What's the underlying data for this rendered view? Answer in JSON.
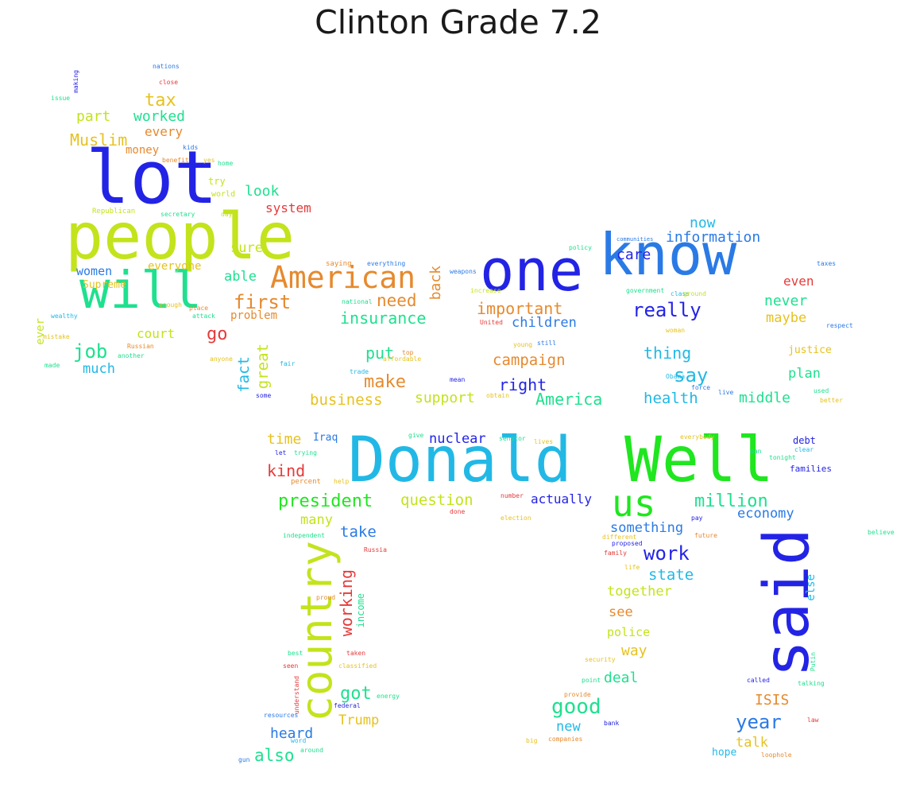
{
  "title": "Clinton Grade 7.2",
  "colors": {
    "blue": "#2323e6",
    "yellowgreen": "#c3e31c",
    "green": "#1fe61f",
    "teal": "#1fe08f",
    "cyan": "#22b8e6",
    "orange": "#e68a2e",
    "red": "#e63a3a",
    "gold": "#e6c21f",
    "skyblue": "#2a7ae6"
  },
  "words": {
    "lot": "lot",
    "people": "people",
    "will": "will",
    "one": "one",
    "know": "know",
    "donald": "Donald",
    "well": "Well",
    "said": "said",
    "country": "country",
    "us": "us",
    "american": "American",
    "tax": "tax",
    "worked": "worked",
    "part": "part",
    "every": "every",
    "muslim": "Muslim",
    "money": "money",
    "look": "look",
    "system": "system",
    "sure": "sure",
    "able": "able",
    "first": "first",
    "women": "women",
    "everyone": "everyone",
    "supreme": "Supreme",
    "problem": "problem",
    "court": "court",
    "go": "go",
    "job": "job",
    "much": "much",
    "ever": "ever",
    "need": "need",
    "back": "back",
    "insurance": "insurance",
    "important": "important",
    "children": "children",
    "really": "really",
    "care": "care",
    "now": "now",
    "information": "information",
    "even": "even",
    "never": "never",
    "maybe": "maybe",
    "fact": "fact",
    "great": "great",
    "put": "put",
    "campaign": "campaign",
    "thing": "thing",
    "say": "say",
    "make": "make",
    "right": "right",
    "business": "business",
    "support": "support",
    "america": "America",
    "health": "health",
    "middle": "middle",
    "plan": "plan",
    "justice": "justice",
    "time": "time",
    "iraq": "Iraq",
    "nuclear": "nuclear",
    "kind": "kind",
    "president": "president",
    "question": "question",
    "actually": "actually",
    "million": "million",
    "economy": "economy",
    "many": "many",
    "take": "take",
    "something": "something",
    "work": "work",
    "state": "state",
    "together": "together",
    "see": "see",
    "working": "working",
    "income": "income",
    "police": "police",
    "way": "way",
    "deal": "deal",
    "got": "got",
    "good": "good",
    "isis": "ISIS",
    "year": "year",
    "trump": "Trump",
    "heard": "heard",
    "new": "new",
    "talk": "talk",
    "also": "also",
    "hope": "hope",
    "else": "else",
    "debt": "debt",
    "families": "families",
    "try": "try",
    "world": "world",
    "republican": "Republican",
    "secretary": "secretary",
    "day": "day",
    "close": "close",
    "nations": "nations",
    "issue": "issue",
    "making": "making",
    "kids": "kids",
    "benefit": "benefit",
    "yes": "yes",
    "home": "home",
    "saying": "saying",
    "everything": "everything",
    "weapons": "weapons",
    "national": "national",
    "united": "United",
    "government": "government",
    "class": "class",
    "ground": "ground",
    "policy": "policy",
    "communities": "communities",
    "taxes": "taxes",
    "wealthy": "wealthy",
    "mistake": "mistake",
    "russian": "Russian",
    "another": "another",
    "attack": "attack",
    "anyone": "anyone",
    "fair": "fair",
    "trade": "trade",
    "young": "young",
    "still": "still",
    "affordable": "affordable",
    "top": "top",
    "enough": "enough",
    "place": "place",
    "made": "made",
    "respect": "respect",
    "used": "used",
    "better": "better",
    "force": "force",
    "live": "live",
    "obama": "Obama",
    "mean": "mean",
    "some": "some",
    "obtain": "obtain",
    "lives": "lives",
    "increase": "increase",
    "give": "give",
    "senator": "senator",
    "everybody": "everybody",
    "man": "man",
    "tonight": "tonight",
    "clear": "clear",
    "percent": "percent",
    "trying": "trying",
    "let": "let",
    "help": "help",
    "number": "number",
    "done": "done",
    "believe": "believe",
    "independent": "independent",
    "different": "different",
    "proposed": "proposed",
    "family": "family",
    "life": "life",
    "russia": "Russia",
    "proud": "proud",
    "election": "election",
    "pay": "pay",
    "future": "future",
    "taken": "taken",
    "best": "best",
    "seen": "seen",
    "classified": "classified",
    "understand": "understand",
    "energy": "energy",
    "federal": "federal",
    "resources": "resources",
    "word": "word",
    "around": "around",
    "gun": "gun",
    "security": "security",
    "point": "point",
    "provide": "provide",
    "called": "called",
    "talking": "talking",
    "putin": "Putin",
    "bank": "bank",
    "big": "big",
    "companies": "companies",
    "loophole": "loophole",
    "law": "law",
    "woman": "woman"
  }
}
